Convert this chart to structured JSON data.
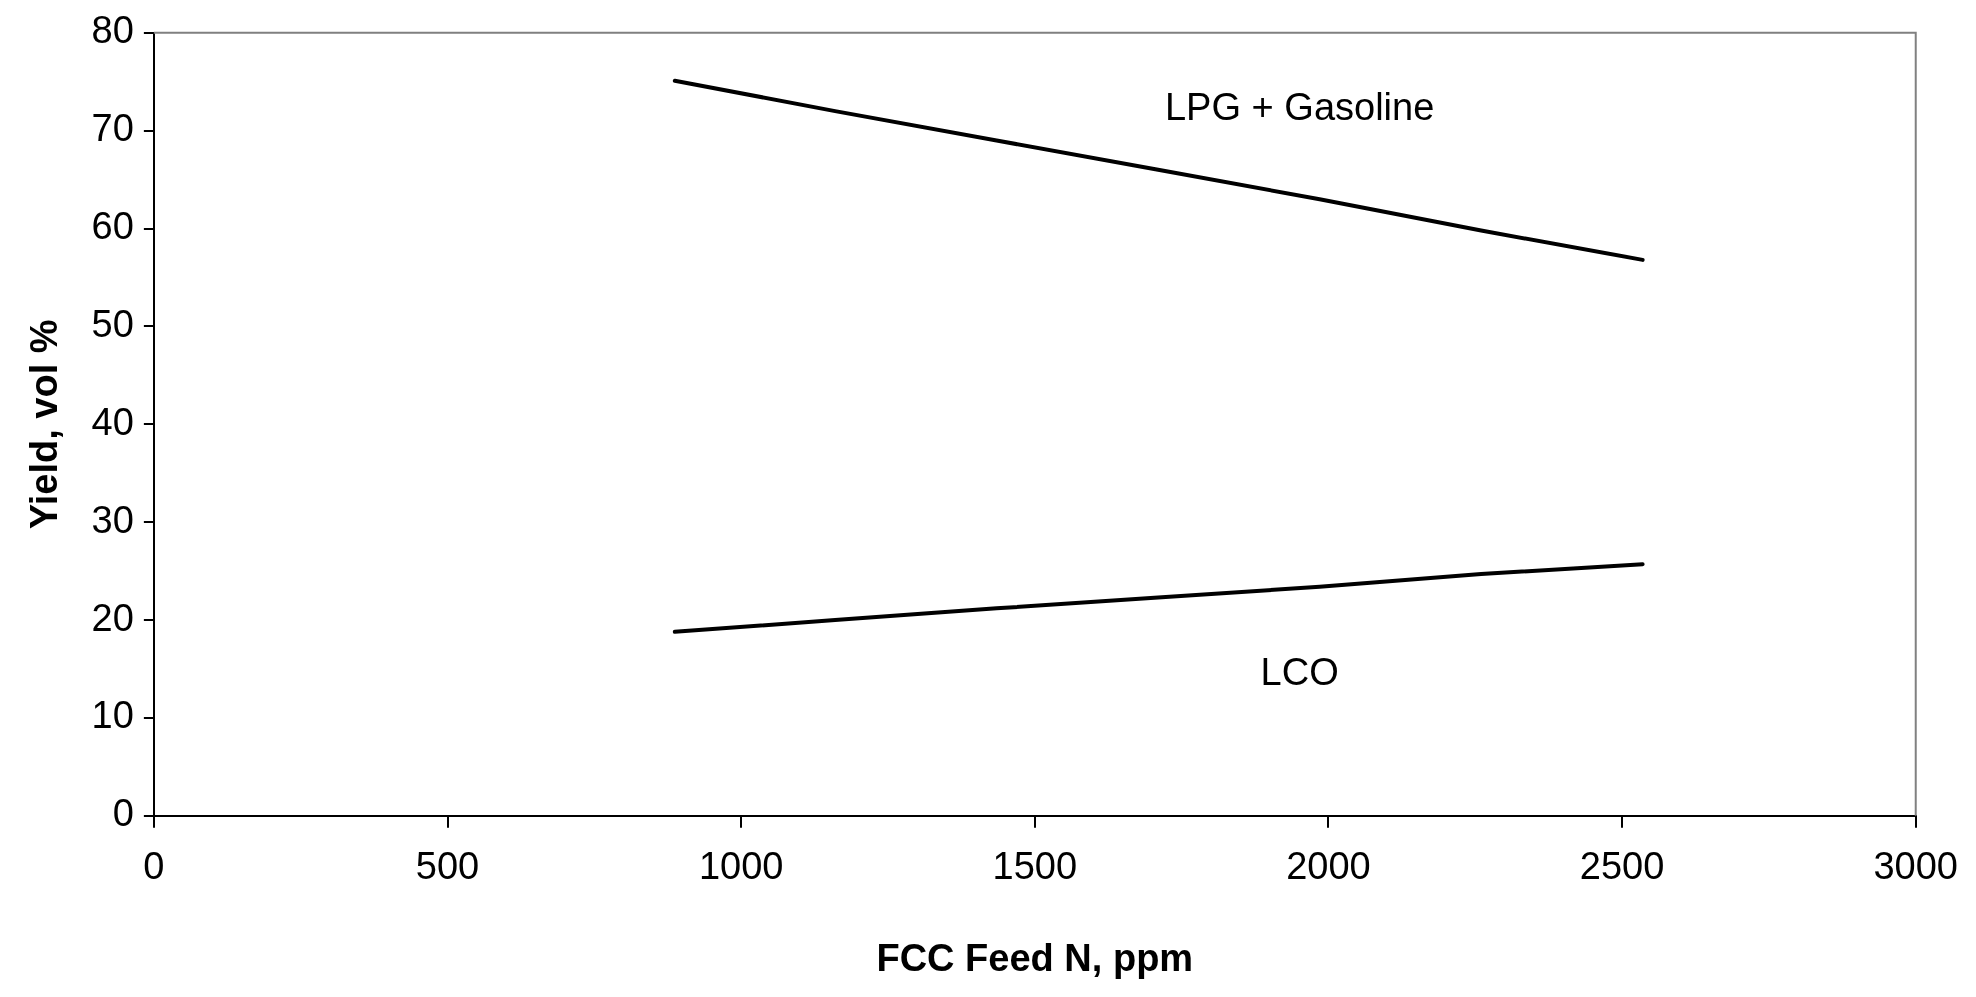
{
  "chart_data": {
    "type": "line",
    "xlabel": "FCC Feed N, ppm",
    "ylabel": "Yield, vol %",
    "x": [
      887,
      1160,
      1435,
      1710,
      1985,
      2260,
      2535
    ],
    "series": [
      {
        "name": "LPG + Gasoline",
        "color": "#000000",
        "values": [
          75.1,
          72,
          69,
          66,
          63,
          59.8,
          56.8
        ]
      },
      {
        "name": "LCO",
        "color": "#000000",
        "values": [
          18.8,
          20,
          21.2,
          22.3,
          23.4,
          24.7,
          25.7
        ]
      }
    ],
    "xlim": [
      0,
      3000
    ],
    "xticks": [
      0,
      500,
      1000,
      1500,
      2000,
      2500,
      3000
    ],
    "ylim": [
      0,
      80
    ],
    "yticks": [
      0,
      10,
      20,
      30,
      40,
      50,
      60,
      70,
      80
    ],
    "grid": false,
    "legend": false,
    "marker": "none",
    "line_style": "solid"
  }
}
